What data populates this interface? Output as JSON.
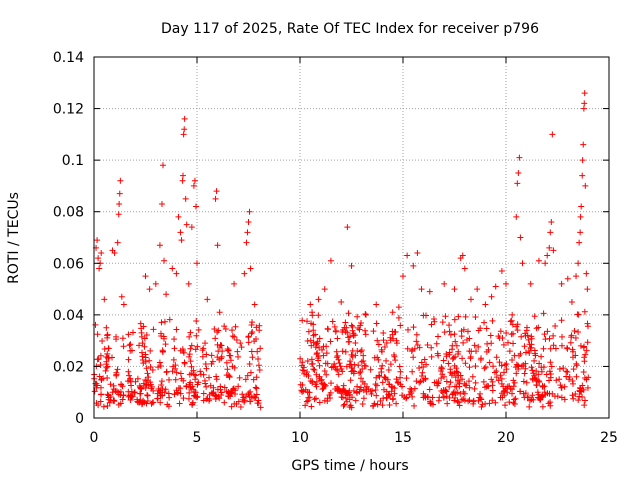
{
  "chart_data": {
    "type": "scatter",
    "title": "Day 117 of 2025, Rate Of TEC Index for receiver p796",
    "xlabel": "GPS time / hours",
    "ylabel": "ROTI / TECUs",
    "xlim": [
      0,
      25
    ],
    "ylim": [
      0,
      0.14
    ],
    "xticks": [
      "0",
      "5",
      "10",
      "15",
      "20",
      "25"
    ],
    "yticks": [
      "0",
      "0.02",
      "0.04",
      "0.06",
      "0.08",
      "0.1",
      "0.12",
      "0.14"
    ],
    "grid": true,
    "marker": "plus",
    "color": "#ff0000",
    "series": [
      {
        "points": [
          [
            0.1,
            0.066
          ],
          [
            0.15,
            0.069
          ],
          [
            0.2,
            0.062
          ],
          [
            0.25,
            0.058
          ],
          [
            0.3,
            0.06
          ],
          [
            0.35,
            0.064
          ],
          [
            0.5,
            0.046
          ],
          [
            0.6,
            0.035
          ],
          [
            0.7,
            0.027
          ],
          [
            0.9,
            0.065
          ],
          [
            1.0,
            0.064
          ],
          [
            1.15,
            0.068
          ],
          [
            1.2,
            0.079
          ],
          [
            1.22,
            0.083
          ],
          [
            1.25,
            0.087
          ],
          [
            1.28,
            0.092
          ],
          [
            1.35,
            0.047
          ],
          [
            1.45,
            0.044
          ],
          [
            2.5,
            0.055
          ],
          [
            2.7,
            0.05
          ],
          [
            3.0,
            0.052
          ],
          [
            3.2,
            0.067
          ],
          [
            3.3,
            0.083
          ],
          [
            3.35,
            0.098
          ],
          [
            3.4,
            0.061
          ],
          [
            3.5,
            0.048
          ],
          [
            3.8,
            0.058
          ],
          [
            4.0,
            0.056
          ],
          [
            4.1,
            0.078
          ],
          [
            4.2,
            0.072
          ],
          [
            4.25,
            0.069
          ],
          [
            4.3,
            0.092
          ],
          [
            4.32,
            0.094
          ],
          [
            4.35,
            0.11
          ],
          [
            4.38,
            0.112
          ],
          [
            4.4,
            0.116
          ],
          [
            4.45,
            0.085
          ],
          [
            4.5,
            0.075
          ],
          [
            4.6,
            0.052
          ],
          [
            4.75,
            0.074
          ],
          [
            4.85,
            0.09
          ],
          [
            4.9,
            0.092
          ],
          [
            4.95,
            0.082
          ],
          [
            5.0,
            0.06
          ],
          [
            5.5,
            0.046
          ],
          [
            5.9,
            0.085
          ],
          [
            5.95,
            0.088
          ],
          [
            6.0,
            0.067
          ],
          [
            6.1,
            0.041
          ],
          [
            6.8,
            0.052
          ],
          [
            7.3,
            0.056
          ],
          [
            7.4,
            0.068
          ],
          [
            7.45,
            0.072
          ],
          [
            7.5,
            0.076
          ],
          [
            7.55,
            0.08
          ],
          [
            7.6,
            0.058
          ],
          [
            7.8,
            0.044
          ],
          [
            10.5,
            0.044
          ],
          [
            10.9,
            0.046
          ],
          [
            11.2,
            0.05
          ],
          [
            11.5,
            0.061
          ],
          [
            12.0,
            0.045
          ],
          [
            12.3,
            0.074
          ],
          [
            12.5,
            0.059
          ],
          [
            13.2,
            0.04
          ],
          [
            13.7,
            0.044
          ],
          [
            14.5,
            0.041
          ],
          [
            14.8,
            0.043
          ],
          [
            15.0,
            0.055
          ],
          [
            15.2,
            0.063
          ],
          [
            15.5,
            0.059
          ],
          [
            15.7,
            0.064
          ],
          [
            15.9,
            0.05
          ],
          [
            16.3,
            0.049
          ],
          [
            17.0,
            0.052
          ],
          [
            17.5,
            0.05
          ],
          [
            17.8,
            0.062
          ],
          [
            17.9,
            0.063
          ],
          [
            18.0,
            0.058
          ],
          [
            18.3,
            0.046
          ],
          [
            18.6,
            0.05
          ],
          [
            19.0,
            0.044
          ],
          [
            19.3,
            0.047
          ],
          [
            19.5,
            0.051
          ],
          [
            19.8,
            0.057
          ],
          [
            20.0,
            0.052
          ],
          [
            20.3,
            0.04
          ],
          [
            20.5,
            0.078
          ],
          [
            20.55,
            0.091
          ],
          [
            20.6,
            0.095
          ],
          [
            20.65,
            0.101
          ],
          [
            20.7,
            0.07
          ],
          [
            20.8,
            0.06
          ],
          [
            21.2,
            0.052
          ],
          [
            21.6,
            0.061
          ],
          [
            21.9,
            0.06
          ],
          [
            22.0,
            0.063
          ],
          [
            22.1,
            0.066
          ],
          [
            22.15,
            0.072
          ],
          [
            22.2,
            0.076
          ],
          [
            22.25,
            0.11
          ],
          [
            22.3,
            0.065
          ],
          [
            22.7,
            0.052
          ],
          [
            23.0,
            0.054
          ],
          [
            23.2,
            0.045
          ],
          [
            23.4,
            0.055
          ],
          [
            23.5,
            0.06
          ],
          [
            23.55,
            0.068
          ],
          [
            23.6,
            0.072
          ],
          [
            23.62,
            0.078
          ],
          [
            23.65,
            0.082
          ],
          [
            23.7,
            0.094
          ],
          [
            23.72,
            0.1
          ],
          [
            23.75,
            0.106
          ],
          [
            23.78,
            0.12
          ],
          [
            23.8,
            0.122
          ],
          [
            23.82,
            0.126
          ],
          [
            23.85,
            0.09
          ],
          [
            23.9,
            0.056
          ],
          [
            23.95,
            0.05
          ]
        ]
      }
    ]
  }
}
